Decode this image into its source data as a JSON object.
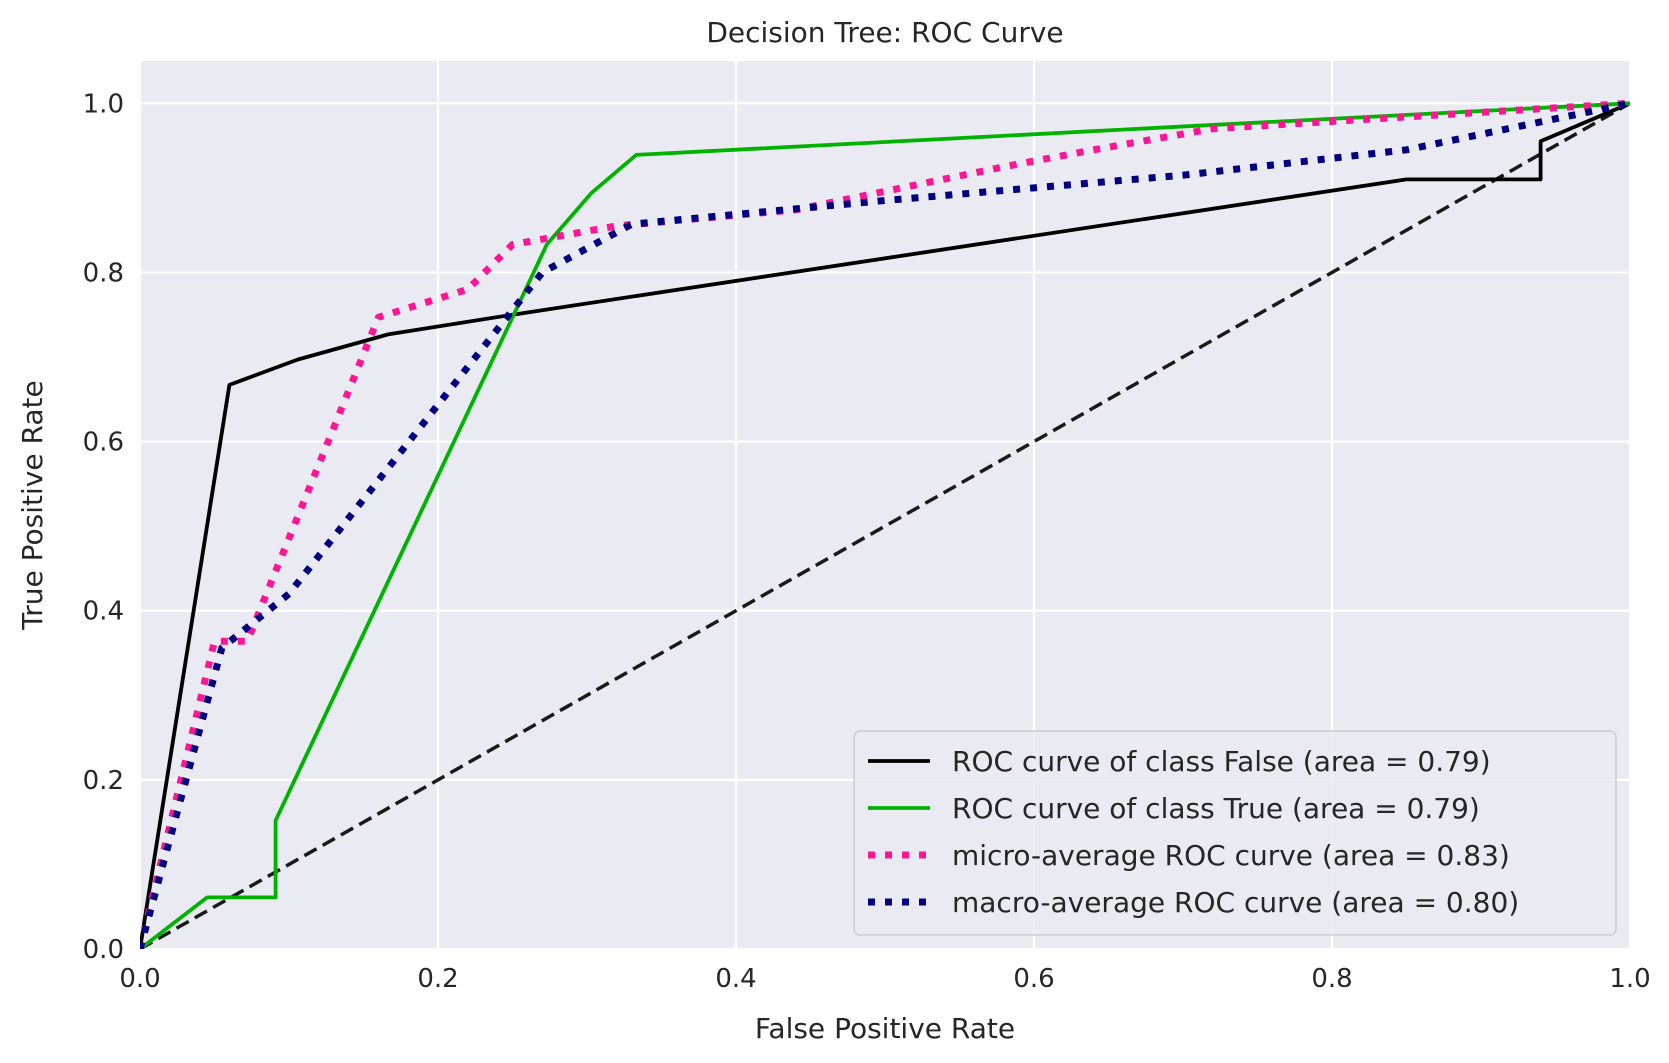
{
  "chart_data": {
    "type": "line",
    "title": "Decision Tree: ROC Curve",
    "xlabel": "False Positive Rate",
    "ylabel": "True Positive Rate",
    "xlim": [
      0,
      1
    ],
    "ylim": [
      0,
      1.05
    ],
    "grid": true,
    "legend_position": "bottom-right",
    "xticks": [
      "0.0",
      "0.2",
      "0.4",
      "0.6",
      "0.8",
      "1.0"
    ],
    "yticks": [
      "0.0",
      "0.2",
      "0.4",
      "0.6",
      "0.8",
      "1.0"
    ],
    "series": [
      {
        "name": "ROC curve of class False (area = 0.79)",
        "color": "#000000",
        "style": "solid",
        "x": [
          0.0,
          0.06,
          0.106,
          0.167,
          0.25,
          0.85,
          0.94,
          0.94,
          1.0
        ],
        "y": [
          0.0,
          0.667,
          0.697,
          0.727,
          0.75,
          0.91,
          0.91,
          0.955,
          1.0
        ]
      },
      {
        "name": "ROC curve of class True (area = 0.79)",
        "color": "#00b300",
        "style": "solid",
        "x": [
          0.0,
          0.045,
          0.091,
          0.091,
          0.273,
          0.303,
          0.333,
          1.0
        ],
        "y": [
          0.0,
          0.061,
          0.061,
          0.152,
          0.833,
          0.894,
          0.939,
          1.0
        ]
      },
      {
        "name": "micro-average ROC curve (area = 0.83)",
        "color": "#ff1493",
        "style": "dotted",
        "x": [
          0.0,
          0.05,
          0.072,
          0.16,
          0.22,
          0.25,
          0.32,
          0.44,
          0.58,
          0.64,
          0.72,
          1.0
        ],
        "y": [
          0.0,
          0.364,
          0.364,
          0.747,
          0.78,
          0.833,
          0.855,
          0.874,
          0.925,
          0.945,
          0.97,
          1.0
        ]
      },
      {
        "name": "macro-average ROC curve (area = 0.80)",
        "color": "#000080",
        "style": "dotted",
        "x": [
          0.0,
          0.055,
          0.1,
          0.27,
          0.33,
          0.5,
          0.7,
          0.85,
          1.0
        ],
        "y": [
          0.0,
          0.356,
          0.42,
          0.8,
          0.857,
          0.885,
          0.915,
          0.945,
          1.0
        ]
      },
      {
        "name": "chance",
        "color": "#1a1a1a",
        "style": "dashed",
        "legend": false,
        "x": [
          0.0,
          1.0
        ],
        "y": [
          0.0,
          1.0
        ]
      }
    ]
  }
}
